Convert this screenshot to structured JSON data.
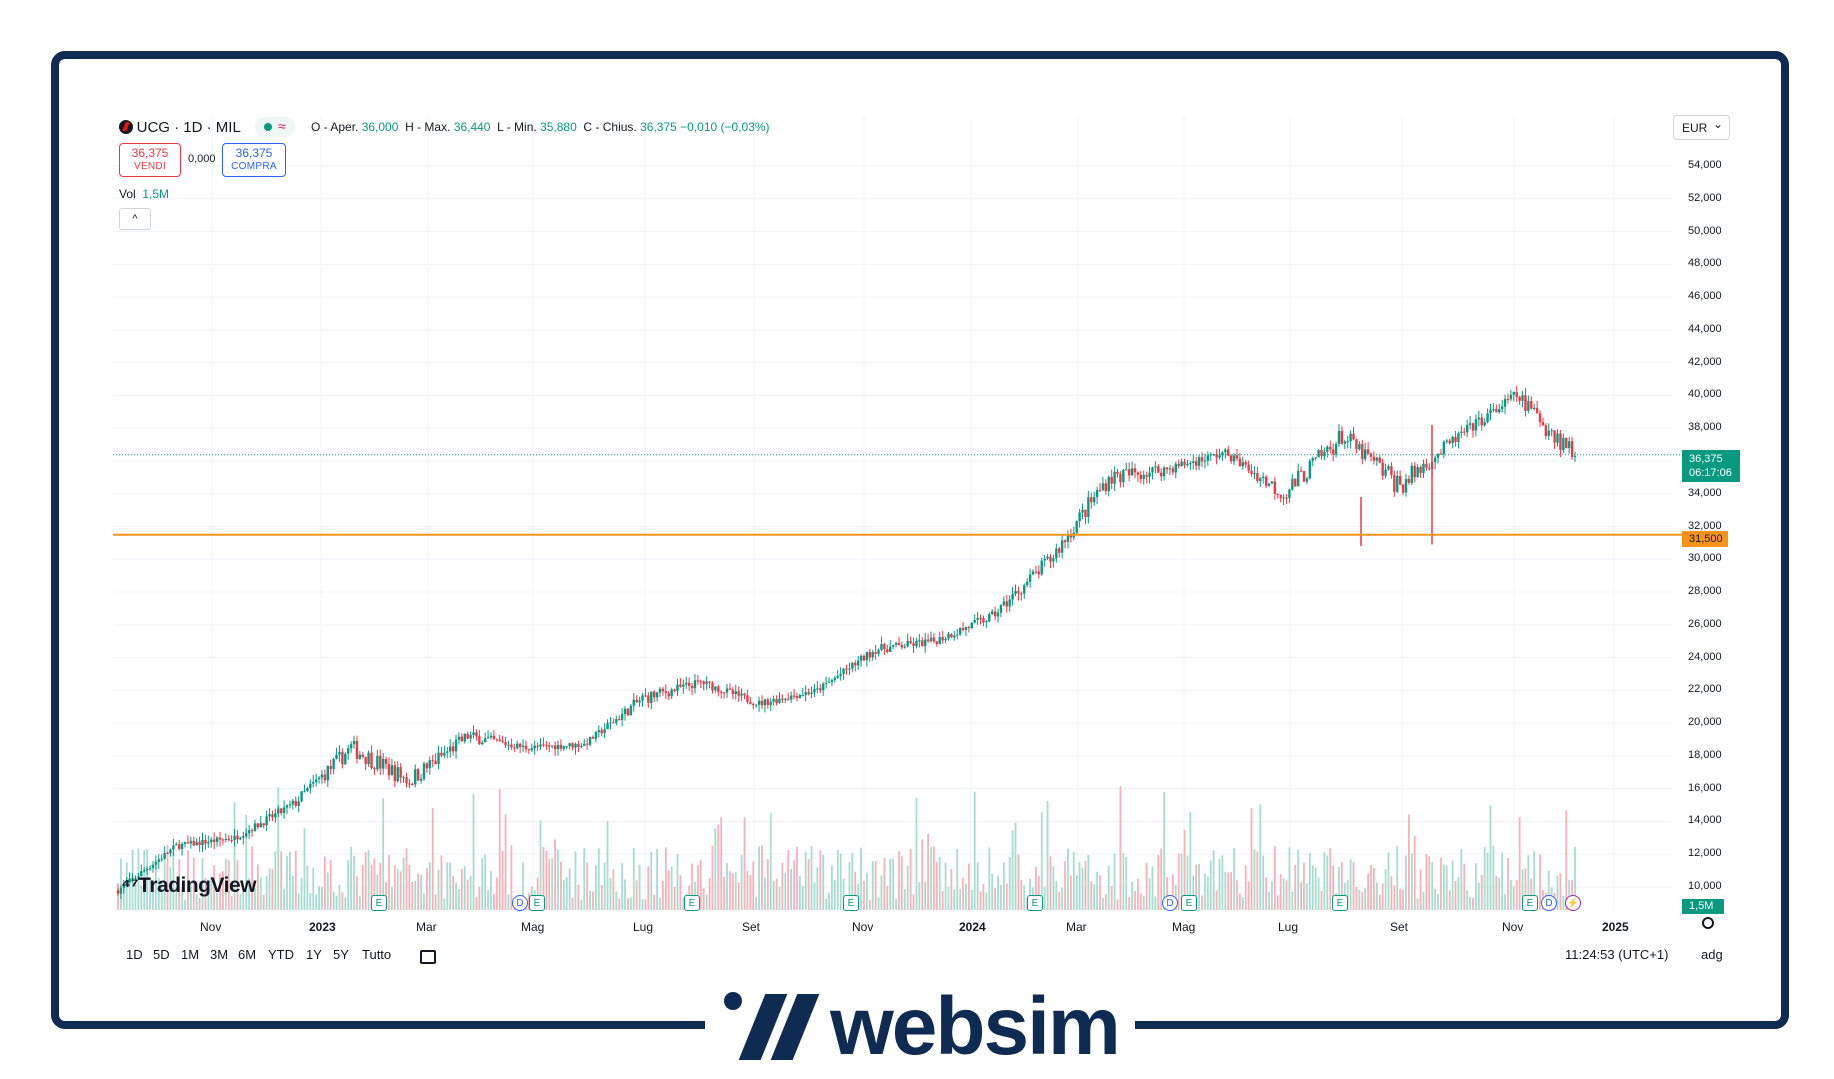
{
  "header": {
    "symbol": "UCG · 1D · MIL",
    "ohlc": {
      "o_label": "O - Aper.",
      "o_value": "36,000",
      "h_label": "H - Max.",
      "h_value": "36,440",
      "l_label": "L - Min.",
      "l_value": "35,880",
      "c_label": "C - Chius.",
      "c_value": "36,375",
      "change": "−0,010 (−0,03%)"
    },
    "sell": {
      "price": "36,375",
      "label": "VENDI"
    },
    "spread": "0,000",
    "buy": {
      "price": "36,375",
      "label": "COMPRA"
    },
    "vol_label": "Vol",
    "vol_value": "1,5M",
    "collapse_glyph": "^"
  },
  "currency_select": {
    "value": "EUR",
    "chevron": "⌄"
  },
  "price_axis": [
    "54,000",
    "52,000",
    "50,000",
    "48,000",
    "46,000",
    "44,000",
    "42,000",
    "40,000",
    "38,000",
    "34,000",
    "30,000",
    "28,000",
    "26,000",
    "24,000",
    "22,000",
    "20,000",
    "18,000",
    "16,000",
    "14,000",
    "12,000",
    "10,000"
  ],
  "partial_axis_label": "32,000",
  "current_price_label": {
    "price": "36,375",
    "countdown": "06:17:06",
    "color": "#089981"
  },
  "horizontal_line_label": {
    "price": "31,500",
    "color": "#f7931a"
  },
  "volume_label": "1,5M",
  "time_axis": [
    "Nov",
    "2023",
    "Mar",
    "Mag",
    "Lug",
    "Set",
    "Nov",
    "2024",
    "Mar",
    "Mag",
    "Lug",
    "Set",
    "Nov",
    "2025"
  ],
  "event_markers": [
    "E",
    "D",
    "E",
    "E",
    "E",
    "E",
    "D",
    "E",
    "E",
    "E",
    "D",
    "⚡"
  ],
  "toolbar": {
    "ranges": [
      "1D",
      "5D",
      "1M",
      "3M",
      "6M",
      "YTD",
      "1Y",
      "5Y",
      "Tutto"
    ],
    "clock": "11:24:53 (UTC+1)",
    "adj": "adg"
  },
  "branding": {
    "tradingview": "TradingView",
    "websim": "websim"
  },
  "colors": {
    "up": "#089981",
    "down": "#f23645",
    "frame": "#0f2b52",
    "hline": "#f7931a"
  },
  "chart_data": {
    "type": "candlestick",
    "title": "UCG · 1D · MIL",
    "x": [
      "2022-10",
      "2022-11",
      "2022-12",
      "2023-01",
      "2023-02",
      "2023-03",
      "2023-04",
      "2023-05",
      "2023-06",
      "2023-07",
      "2023-08",
      "2023-09",
      "2023-10",
      "2023-11",
      "2023-12",
      "2024-01",
      "2024-02",
      "2024-03",
      "2024-04",
      "2024-05",
      "2024-06",
      "2024-07",
      "2024-08",
      "2024-09",
      "2024-10",
      "2024-11"
    ],
    "close": [
      9.8,
      12.5,
      13.0,
      15.0,
      18.5,
      16.5,
      19.2,
      18.5,
      18.7,
      21.5,
      22.5,
      21.2,
      22.0,
      24.5,
      25.0,
      26.5,
      30.0,
      35.0,
      35.5,
      36.5,
      34.0,
      37.5,
      34.5,
      37.5,
      40.0,
      36.4
    ],
    "high": [
      10.5,
      13.2,
      13.5,
      16.0,
      20.8,
      20.0,
      20.0,
      19.5,
      19.2,
      22.8,
      23.0,
      22.8,
      22.5,
      25.0,
      25.8,
      27.5,
      31.2,
      36.0,
      36.8,
      37.2,
      37.3,
      39.3,
      37.5,
      38.5,
      40.8,
      44.0
    ],
    "low": [
      9.5,
      11.8,
      12.3,
      12.8,
      15.8,
      14.8,
      16.3,
      17.8,
      18.0,
      19.0,
      20.8,
      20.6,
      21.0,
      22.5,
      23.5,
      24.5,
      26.5,
      30.5,
      33.5,
      35.0,
      32.0,
      33.5,
      31.0,
      35.5,
      37.0,
      35.5
    ],
    "ylim": [
      10,
      54
    ],
    "horizontal_line": 31.5,
    "last_price": 36.375
  }
}
